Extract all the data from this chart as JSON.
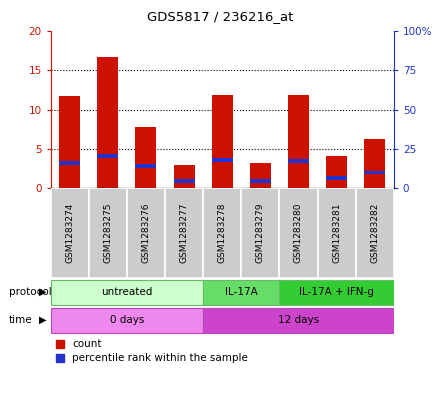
{
  "title": "GDS5817 / 236216_at",
  "samples": [
    "GSM1283274",
    "GSM1283275",
    "GSM1283276",
    "GSM1283277",
    "GSM1283278",
    "GSM1283279",
    "GSM1283280",
    "GSM1283281",
    "GSM1283282"
  ],
  "counts": [
    11.7,
    16.7,
    7.8,
    2.9,
    11.8,
    3.2,
    11.8,
    4.1,
    6.3
  ],
  "percentile_ranks": [
    16.0,
    20.5,
    14.0,
    4.5,
    18.0,
    4.5,
    17.5,
    6.5,
    10.0
  ],
  "bar_color": "#cc1100",
  "percentile_color": "#2233cc",
  "ylim_left": [
    0,
    20
  ],
  "ylim_right": [
    0,
    100
  ],
  "yticks_left": [
    0,
    5,
    10,
    15,
    20
  ],
  "ytick_labels_left": [
    "0",
    "5",
    "10",
    "15",
    "20"
  ],
  "yticks_right": [
    0,
    25,
    50,
    75,
    100
  ],
  "ytick_labels_right": [
    "0",
    "25",
    "50",
    "75",
    "100%"
  ],
  "protocol_groups": [
    {
      "label": "untreated",
      "start": 0,
      "end": 4,
      "color": "#ccffcc",
      "border_color": "#66bb66"
    },
    {
      "label": "IL-17A",
      "start": 4,
      "end": 6,
      "color": "#66dd66",
      "border_color": "#66bb66"
    },
    {
      "label": "IL-17A + IFN-g",
      "start": 6,
      "end": 9,
      "color": "#33cc33",
      "border_color": "#66bb66"
    }
  ],
  "time_groups": [
    {
      "label": "0 days",
      "start": 0,
      "end": 4,
      "color": "#ee88ee"
    },
    {
      "label": "12 days",
      "start": 4,
      "end": 9,
      "color": "#cc44cc"
    }
  ],
  "legend_count_label": "count",
  "legend_percentile_label": "percentile rank within the sample",
  "protocol_label": "protocol",
  "time_label": "time",
  "tick_color_left": "#cc1100",
  "tick_color_right": "#2233cc",
  "bg_chart": "#ffffff",
  "bg_sample_row": "#cccccc",
  "fig_width": 4.4,
  "fig_height": 3.93,
  "fig_dpi": 100
}
